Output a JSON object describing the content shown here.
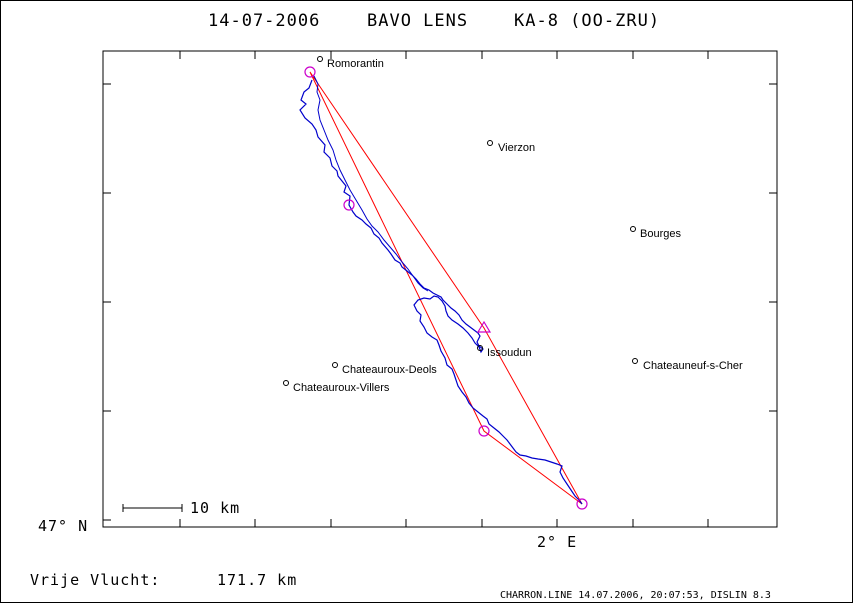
{
  "header": {
    "date": "14-07-2006",
    "pilot": "BAVO LENS",
    "glider": "KA-8 (OO-ZRU)"
  },
  "axes": {
    "y_label": "47° N",
    "x_label": "2° E"
  },
  "scale_bar": {
    "label": "10 km"
  },
  "towns": [
    {
      "name": "Romorantin"
    },
    {
      "name": "Vierzon"
    },
    {
      "name": "Bourges"
    },
    {
      "name": "Issoudun"
    },
    {
      "name": "Chateauneuf-s-Cher"
    },
    {
      "name": "Chateauroux-Deols"
    },
    {
      "name": "Chateauroux-Villers"
    }
  ],
  "summary": {
    "label": "Vrije Vlucht:",
    "distance": "171.7 km"
  },
  "footer": {
    "credit": "CHARRON.LINE 14.07.2006, 20:07:53, DISLIN 8.3"
  },
  "colors": {
    "track": "#0000cc",
    "task": "#ff0000",
    "turnpoint": "#cc00cc",
    "frame": "#000000"
  }
}
